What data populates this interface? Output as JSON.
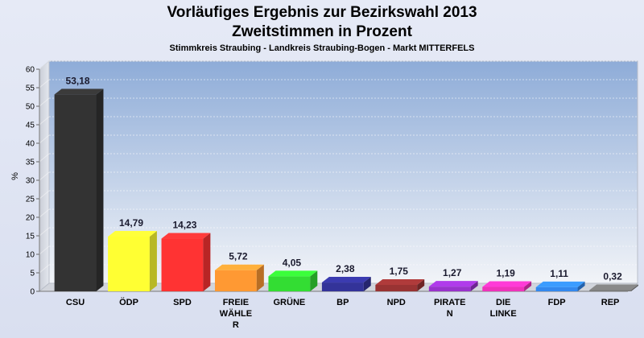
{
  "chart_data": {
    "type": "bar",
    "title": [
      "Vorläufiges Ergebnis zur Bezirkswahl 2013",
      "Zweitstimmen in Prozent"
    ],
    "subtitle": "Stimmkreis Straubing - Landkreis Straubing-Bogen - Markt MITTERFELS",
    "ylabel": "%",
    "ylim": [
      0,
      60
    ],
    "yticks": [
      0,
      5,
      10,
      15,
      20,
      25,
      30,
      35,
      40,
      45,
      50,
      55,
      60
    ],
    "categories": [
      [
        "CSU"
      ],
      [
        "ÖDP"
      ],
      [
        "SPD"
      ],
      [
        "FREIE",
        "WÄHLE",
        "R"
      ],
      [
        "GRÜNE"
      ],
      [
        "BP"
      ],
      [
        "NPD"
      ],
      [
        "PIRATE",
        "N"
      ],
      [
        "DIE",
        "LINKE"
      ],
      [
        "FDP"
      ],
      [
        "REP"
      ]
    ],
    "values": [
      53.18,
      14.79,
      14.23,
      5.72,
      4.05,
      2.38,
      1.75,
      1.27,
      1.19,
      1.11,
      0.32
    ],
    "value_labels": [
      "53,18",
      "14,79",
      "14,23",
      "5,72",
      "4,05",
      "2,38",
      "1,75",
      "1,27",
      "1,19",
      "1,11",
      "0,32"
    ],
    "colors": [
      "#333333",
      "#ffff33",
      "#ff3333",
      "#ff9933",
      "#33dd33",
      "#333399",
      "#993333",
      "#9933cc",
      "#ee33bb",
      "#3388ee",
      "#777777"
    ],
    "grid": true
  }
}
